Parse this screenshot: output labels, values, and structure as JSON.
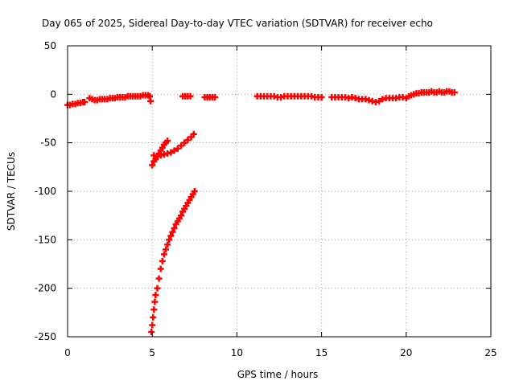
{
  "chart_data": {
    "type": "scatter",
    "title": "Day 065 of 2025, Sidereal Day-to-day VTEC variation (SDTVAR) for receiver echo",
    "xlabel": "GPS time / hours",
    "ylabel": "SDTVAR / TECUs",
    "xlim": [
      0,
      25
    ],
    "ylim": [
      -250,
      50
    ],
    "x_ticks": [
      0,
      5,
      10,
      15,
      20,
      25
    ],
    "x_tick_labels": [
      "0",
      "5",
      "10",
      "15",
      "20",
      "25"
    ],
    "y_ticks": [
      -250,
      -200,
      -150,
      -100,
      -50,
      0,
      50
    ],
    "y_tick_labels": [
      "-250",
      "-200",
      "-150",
      "-100",
      "-50",
      "0",
      "50"
    ],
    "grid": true,
    "marker": "plus",
    "series_color": "#ff0000",
    "series": [
      {
        "points": [
          [
            0.0,
            -11
          ],
          [
            0.15,
            -11
          ],
          [
            0.3,
            -10
          ],
          [
            0.45,
            -10
          ],
          [
            0.6,
            -9
          ],
          [
            0.75,
            -9
          ],
          [
            0.9,
            -8
          ],
          [
            1.0,
            -8
          ],
          [
            1.3,
            -4
          ],
          [
            1.45,
            -5
          ],
          [
            1.6,
            -6
          ],
          [
            1.75,
            -6
          ],
          [
            1.9,
            -5
          ],
          [
            2.05,
            -5
          ],
          [
            2.2,
            -5
          ],
          [
            2.35,
            -5
          ],
          [
            2.5,
            -4
          ],
          [
            2.65,
            -4
          ],
          [
            2.8,
            -4
          ],
          [
            2.95,
            -3
          ],
          [
            3.1,
            -3
          ],
          [
            3.25,
            -3
          ],
          [
            3.4,
            -3
          ],
          [
            3.55,
            -2
          ],
          [
            3.7,
            -2
          ],
          [
            3.85,
            -2
          ],
          [
            4.0,
            -2
          ],
          [
            4.15,
            -2
          ],
          [
            4.3,
            -2
          ],
          [
            4.45,
            -1
          ],
          [
            4.6,
            -1
          ],
          [
            4.75,
            -1
          ],
          [
            4.85,
            -2
          ],
          [
            4.9,
            -7
          ],
          [
            6.8,
            -2
          ],
          [
            6.95,
            -2
          ],
          [
            7.1,
            -2
          ],
          [
            7.25,
            -2
          ],
          [
            8.1,
            -3
          ],
          [
            8.25,
            -3
          ],
          [
            8.4,
            -3
          ],
          [
            8.55,
            -3
          ],
          [
            8.7,
            -3
          ],
          [
            11.2,
            -2
          ],
          [
            11.4,
            -2
          ],
          [
            11.6,
            -2
          ],
          [
            11.8,
            -2
          ],
          [
            12.0,
            -2
          ],
          [
            12.2,
            -2
          ],
          [
            12.4,
            -3
          ],
          [
            12.6,
            -3
          ],
          [
            12.8,
            -2
          ],
          [
            13.0,
            -2
          ],
          [
            13.2,
            -2
          ],
          [
            13.4,
            -2
          ],
          [
            13.6,
            -2
          ],
          [
            13.8,
            -2
          ],
          [
            14.0,
            -2
          ],
          [
            14.2,
            -2
          ],
          [
            14.4,
            -2
          ],
          [
            14.6,
            -3
          ],
          [
            14.8,
            -3
          ],
          [
            15.0,
            -3
          ],
          [
            15.6,
            -3
          ],
          [
            15.8,
            -3
          ],
          [
            16.0,
            -3
          ],
          [
            16.2,
            -3
          ],
          [
            16.4,
            -3
          ],
          [
            16.6,
            -4
          ],
          [
            16.8,
            -3
          ],
          [
            17.0,
            -4
          ],
          [
            17.2,
            -5
          ],
          [
            17.4,
            -5
          ],
          [
            17.6,
            -5
          ],
          [
            17.8,
            -6
          ],
          [
            18.0,
            -7
          ],
          [
            18.2,
            -8
          ],
          [
            18.4,
            -7
          ],
          [
            18.6,
            -5
          ],
          [
            18.8,
            -4
          ],
          [
            19.0,
            -4
          ],
          [
            19.2,
            -4
          ],
          [
            19.4,
            -4
          ],
          [
            19.6,
            -3
          ],
          [
            19.8,
            -3
          ],
          [
            20.0,
            -4
          ],
          [
            20.15,
            -2
          ],
          [
            20.3,
            -1
          ],
          [
            20.45,
            0
          ],
          [
            20.6,
            1
          ],
          [
            20.75,
            1
          ],
          [
            20.9,
            2
          ],
          [
            21.05,
            2
          ],
          [
            21.2,
            2
          ],
          [
            21.35,
            2
          ],
          [
            21.5,
            3
          ],
          [
            21.65,
            2
          ],
          [
            21.8,
            2
          ],
          [
            21.95,
            3
          ],
          [
            22.1,
            2
          ],
          [
            22.25,
            2
          ],
          [
            22.4,
            3
          ],
          [
            22.55,
            3
          ],
          [
            22.7,
            2
          ],
          [
            22.85,
            2
          ],
          [
            5.0,
            -73
          ],
          [
            5.1,
            -69
          ],
          [
            5.2,
            -67
          ],
          [
            5.3,
            -64
          ],
          [
            5.4,
            -61
          ],
          [
            5.5,
            -58
          ],
          [
            5.6,
            -55
          ],
          [
            5.7,
            -52
          ],
          [
            5.8,
            -50
          ],
          [
            5.9,
            -48
          ],
          [
            5.1,
            -63
          ],
          [
            5.3,
            -64
          ],
          [
            5.5,
            -63
          ],
          [
            5.7,
            -62
          ],
          [
            5.9,
            -61
          ],
          [
            6.1,
            -60
          ],
          [
            6.3,
            -58
          ],
          [
            6.5,
            -56
          ],
          [
            6.7,
            -53
          ],
          [
            6.9,
            -50
          ],
          [
            7.1,
            -47
          ],
          [
            7.3,
            -44
          ],
          [
            7.45,
            -41
          ],
          [
            4.95,
            -245
          ],
          [
            5.0,
            -238
          ],
          [
            5.05,
            -230
          ],
          [
            5.1,
            -222
          ],
          [
            5.15,
            -214
          ],
          [
            5.2,
            -207
          ],
          [
            5.3,
            -200
          ],
          [
            5.4,
            -190
          ],
          [
            5.5,
            -180
          ],
          [
            5.6,
            -172
          ],
          [
            5.7,
            -165
          ],
          [
            5.8,
            -160
          ],
          [
            5.9,
            -155
          ],
          [
            6.0,
            -150
          ],
          [
            6.1,
            -146
          ],
          [
            6.2,
            -142
          ],
          [
            6.3,
            -138
          ],
          [
            6.4,
            -134
          ],
          [
            6.5,
            -131
          ],
          [
            6.6,
            -128
          ],
          [
            6.7,
            -125
          ],
          [
            6.8,
            -121
          ],
          [
            6.9,
            -118
          ],
          [
            7.0,
            -115
          ],
          [
            7.1,
            -112
          ],
          [
            7.2,
            -109
          ],
          [
            7.3,
            -106
          ],
          [
            7.4,
            -103
          ],
          [
            7.5,
            -100
          ]
        ]
      }
    ]
  }
}
